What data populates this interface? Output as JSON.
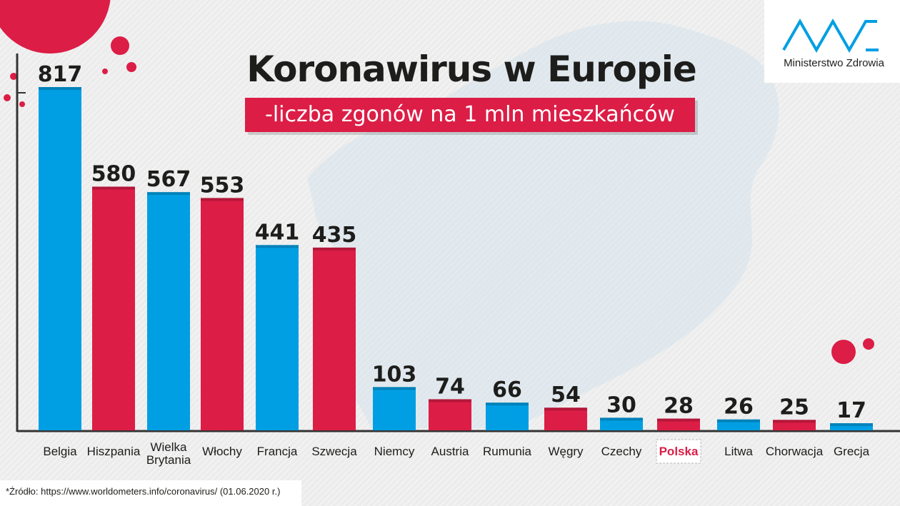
{
  "logo": {
    "org_name": "Ministerstwo Zdrowia"
  },
  "footer": {
    "source": "*Źródło: https://www.worldometers.info/coronavirus/ (01.06.2020 r.)"
  },
  "colors": {
    "blue": "#009fe3",
    "red": "#dc1d46",
    "axis": "#333333",
    "text": "#1d1d1b"
  },
  "chart_data": {
    "type": "bar",
    "title": "Koronawirus w Europie",
    "subtitle": "-liczba zgonów na 1 mln mieszkańców",
    "categories": [
      "Belgia",
      "Hiszpania",
      "Wielka Brytania",
      "Włochy",
      "Francja",
      "Szwecja",
      "Niemcy",
      "Austria",
      "Rumunia",
      "Węgry",
      "Czechy",
      "Polska",
      "Litwa",
      "Chorwacja",
      "Grecja"
    ],
    "values": [
      817,
      580,
      567,
      553,
      441,
      435,
      103,
      74,
      66,
      54,
      30,
      28,
      26,
      25,
      17
    ],
    "bar_colors": [
      "blue",
      "red",
      "blue",
      "red",
      "blue",
      "red",
      "blue",
      "red",
      "blue",
      "red",
      "blue",
      "red",
      "blue",
      "red",
      "blue"
    ],
    "highlighted_category": "Polska",
    "xlabel": "",
    "ylabel": "",
    "ylim": [
      0,
      817
    ],
    "grid": false,
    "legend": "none"
  }
}
